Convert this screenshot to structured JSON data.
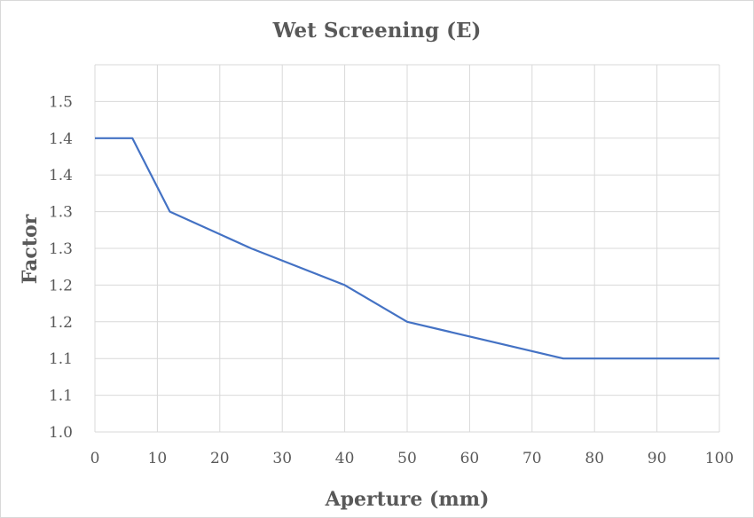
{
  "chart_data": {
    "type": "line",
    "title": "Wet Screening (E)",
    "xlabel": "Aperture (mm)",
    "ylabel": "Factor",
    "xlim": [
      0,
      100
    ],
    "ylim": [
      1.0,
      1.5
    ],
    "x_ticks": [
      "0",
      "10",
      "20",
      "30",
      "40",
      "50",
      "60",
      "70",
      "80",
      "90",
      "100"
    ],
    "x_tick_values": [
      0,
      10,
      20,
      30,
      40,
      50,
      60,
      70,
      80,
      90,
      100
    ],
    "y_ticks": [
      "1.0",
      "1.1",
      "1.1",
      "1.2",
      "1.2",
      "1.3",
      "1.3",
      "1.4",
      "1.4",
      "1.5"
    ],
    "y_tick_values": [
      1.0,
      1.05,
      1.1,
      1.15,
      1.2,
      1.25,
      1.3,
      1.35,
      1.4,
      1.45
    ],
    "grid": true,
    "legend": "none",
    "series": [
      {
        "color": "#4472c4",
        "x": [
          0,
          6,
          12,
          25,
          40,
          50,
          75,
          100
        ],
        "y": [
          1.4,
          1.4,
          1.3,
          1.25,
          1.2,
          1.15,
          1.1,
          1.1
        ]
      }
    ]
  }
}
